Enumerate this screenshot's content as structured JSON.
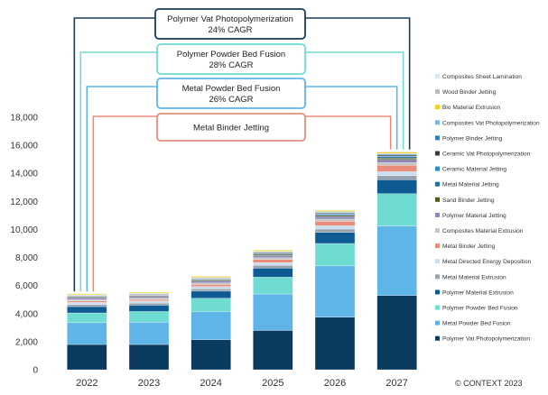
{
  "chart_data": {
    "type": "bar",
    "stacked": true,
    "categories": [
      "2022",
      "2023",
      "2024",
      "2025",
      "2026",
      "2027"
    ],
    "ylim": [
      0,
      18000
    ],
    "yticks": [
      0,
      2000,
      4000,
      6000,
      8000,
      10000,
      12000,
      14000,
      16000,
      18000
    ],
    "ytick_labels": [
      "0",
      "2,000",
      "4,000",
      "6,000",
      "8,000",
      "10,000",
      "12,000",
      "14,000",
      "16,000",
      "18,000"
    ],
    "grid": false,
    "legend_position": "right",
    "series": [
      {
        "name": "Polymer Vat Photopolymerization",
        "color": "#0b3a5f",
        "values": [
          1800,
          1800,
          2150,
          2800,
          3750,
          5300
        ]
      },
      {
        "name": "Metal Powder Bed Fusion",
        "color": "#5fb5e8",
        "values": [
          1550,
          1600,
          2000,
          2600,
          3650,
          4950
        ]
      },
      {
        "name": "Polymer Powder Bed Fusion",
        "color": "#6fdcd2",
        "values": [
          700,
          750,
          950,
          1200,
          1600,
          2300
        ]
      },
      {
        "name": "Polymer Material Extrusion",
        "color": "#0e5a93",
        "values": [
          450,
          450,
          500,
          650,
          800,
          1000
        ]
      },
      {
        "name": "Metal Material Extrusion",
        "color": "#9aa3ad",
        "values": [
          150,
          150,
          170,
          200,
          230,
          280
        ]
      },
      {
        "name": "Metal Directed Energy Deposition",
        "color": "#c9dff0",
        "values": [
          150,
          150,
          160,
          190,
          230,
          290
        ]
      },
      {
        "name": "Metal Binder Jetting",
        "color": "#e88d7b",
        "values": [
          100,
          110,
          150,
          220,
          320,
          450
        ]
      },
      {
        "name": "Composites Material Extrusion",
        "color": "#c6c6c6",
        "values": [
          100,
          100,
          110,
          130,
          160,
          190
        ]
      },
      {
        "name": "Polymer Material Jetting",
        "color": "#8b87b7",
        "values": [
          130,
          130,
          140,
          160,
          190,
          230
        ]
      },
      {
        "name": "Sand Binder Jetting",
        "color": "#4a5a1e",
        "values": [
          60,
          60,
          70,
          80,
          90,
          110
        ]
      },
      {
        "name": "Metal Material Jetting",
        "color": "#1f6f9e",
        "values": [
          30,
          30,
          40,
          50,
          60,
          80
        ]
      },
      {
        "name": "Ceramic Material Jetting",
        "color": "#2d8fce",
        "values": [
          30,
          30,
          35,
          40,
          50,
          60
        ]
      },
      {
        "name": "Ceramic Vat Photopolymerization",
        "color": "#3b3b3b",
        "values": [
          40,
          40,
          45,
          50,
          60,
          70
        ]
      },
      {
        "name": "Polymer Binder Jetting",
        "color": "#2f7fbf",
        "values": [
          30,
          30,
          35,
          40,
          50,
          60
        ]
      },
      {
        "name": "Composites Vat Photopolymerization",
        "color": "#7fb8dc",
        "values": [
          25,
          25,
          30,
          35,
          40,
          50
        ]
      },
      {
        "name": "Bio Material Extrusion",
        "color": "#f2d11a",
        "values": [
          70,
          70,
          75,
          80,
          90,
          100
        ]
      },
      {
        "name": "Wood Binder Jetting",
        "color": "#b8bcc2",
        "values": [
          20,
          20,
          20,
          25,
          30,
          35
        ]
      },
      {
        "name": "Composites Sheet Lamination",
        "color": "#d4e6f4",
        "values": [
          15,
          15,
          15,
          20,
          25,
          30
        ]
      }
    ]
  },
  "callouts": [
    {
      "line1": "Polymer Vat Photopolymerization",
      "line2": "24% CAGR",
      "color": "#1b3a5c"
    },
    {
      "line1": "Polymer Powder Bed Fusion",
      "line2": "28% CAGR",
      "color": "#6fdcd2"
    },
    {
      "line1": "Metal Powder Bed Fusion",
      "line2": "26% CAGR",
      "color": "#5fb5e8"
    },
    {
      "line1": "Metal Binder Jetting",
      "line2": "",
      "color": "#e88d7b"
    }
  ],
  "copyright": "© CONTEXT 2023"
}
